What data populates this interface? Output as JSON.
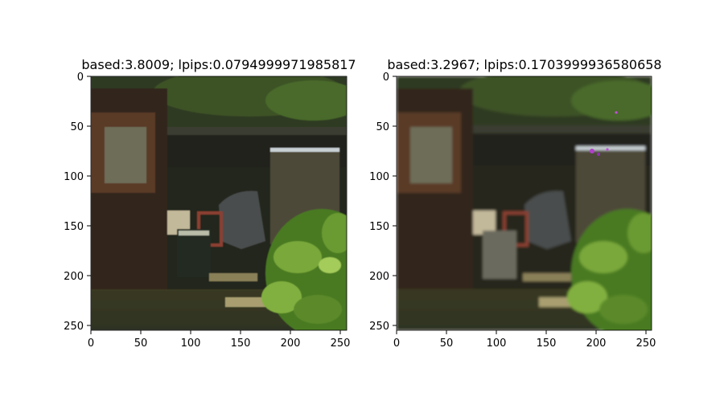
{
  "figure": {
    "panels": [
      {
        "title": "based:3.8009; lpips:0.0794999971985817",
        "y_ticks": [
          "0",
          "50",
          "100",
          "150",
          "200",
          "250"
        ],
        "x_ticks": [
          "0",
          "50",
          "100",
          "150",
          "200",
          "250"
        ],
        "image": "photo of a backyard with a small shed, plastic chair, white panel and bright green foliage (sharper version)"
      },
      {
        "title": "based:3.2967; lpips:0.1703999936580658",
        "y_ticks": [
          "0",
          "50",
          "100",
          "150",
          "200",
          "250"
        ],
        "x_ticks": [
          "0",
          "50",
          "100",
          "150",
          "200",
          "250"
        ],
        "image": "photo of the same backyard scene, softer/blurrier with magenta artifacts near the top of the white panel"
      }
    ],
    "colors": {
      "foliage": "#5c8a2a",
      "dark_bg": "#2b2a1c",
      "shed_wood": "#3a2a1c",
      "panel": "#4e4a38",
      "artifact": "#b040c8"
    }
  }
}
